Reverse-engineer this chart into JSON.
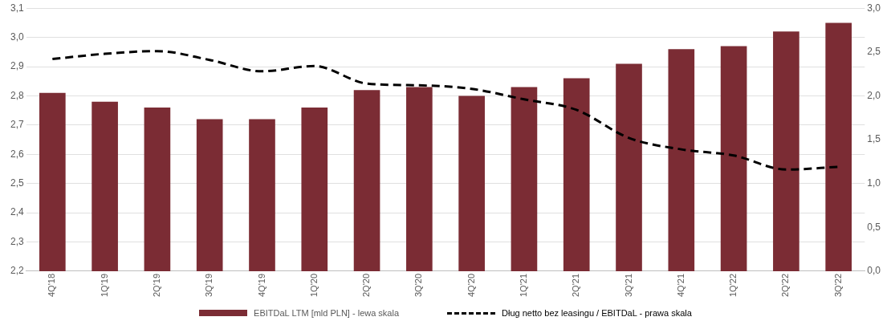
{
  "chart_data": {
    "type": "bar",
    "categories": [
      "4Q'18",
      "1Q'19",
      "2Q'19",
      "3Q'19",
      "4Q'19",
      "1Q'20",
      "2Q'20",
      "3Q'20",
      "4Q'20",
      "1Q'21",
      "2Q'21",
      "3Q'21",
      "4Q'21",
      "1Q'22",
      "2Q'22",
      "3Q'22"
    ],
    "series": [
      {
        "name": "EBITDaL LTM [mld PLN] - lewa skala",
        "color": "#7b2c34",
        "values": [
          2.81,
          2.78,
          2.76,
          2.72,
          2.72,
          2.76,
          2.82,
          2.83,
          2.8,
          2.83,
          2.86,
          2.91,
          2.96,
          2.97,
          3.02,
          3.05
        ]
      },
      {
        "name": "Dług netto bez leasingu / EBITDaL - prawa skala",
        "type": "line",
        "axis": "y2",
        "color": "#000000",
        "line_style": "dashed",
        "marker": "none",
        "values": [
          2.42,
          2.48,
          2.51,
          2.41,
          2.28,
          2.34,
          2.14,
          2.12,
          2.08,
          1.96,
          1.84,
          1.52,
          1.39,
          1.32,
          1.16,
          1.19
        ]
      }
    ],
    "ylim": [
      2.2,
      3.1
    ],
    "yticks": [
      {
        "value": 2.2,
        "label": "2,2"
      },
      {
        "value": 2.3,
        "label": "2,3"
      },
      {
        "value": 2.4,
        "label": "2,4"
      },
      {
        "value": 2.5,
        "label": "2,5"
      },
      {
        "value": 2.6,
        "label": "2,6"
      },
      {
        "value": 2.7,
        "label": "2,7"
      },
      {
        "value": 2.8,
        "label": "2,8"
      },
      {
        "value": 2.9,
        "label": "2,9"
      },
      {
        "value": 3.0,
        "label": "3,0"
      },
      {
        "value": 3.1,
        "label": "3,1"
      }
    ],
    "y2lim": [
      0,
      3
    ],
    "y2ticks": [
      {
        "value": 0,
        "label": "0,0"
      },
      {
        "value": 0.5,
        "label": "0,5"
      },
      {
        "value": 1,
        "label": "1,0"
      },
      {
        "value": 1.5,
        "label": "1,5"
      },
      {
        "value": 2,
        "label": "2,0"
      },
      {
        "value": 2.5,
        "label": "2,5"
      },
      {
        "value": 3,
        "label": "3,0"
      }
    ],
    "grid": "y",
    "legend": "bottom"
  }
}
